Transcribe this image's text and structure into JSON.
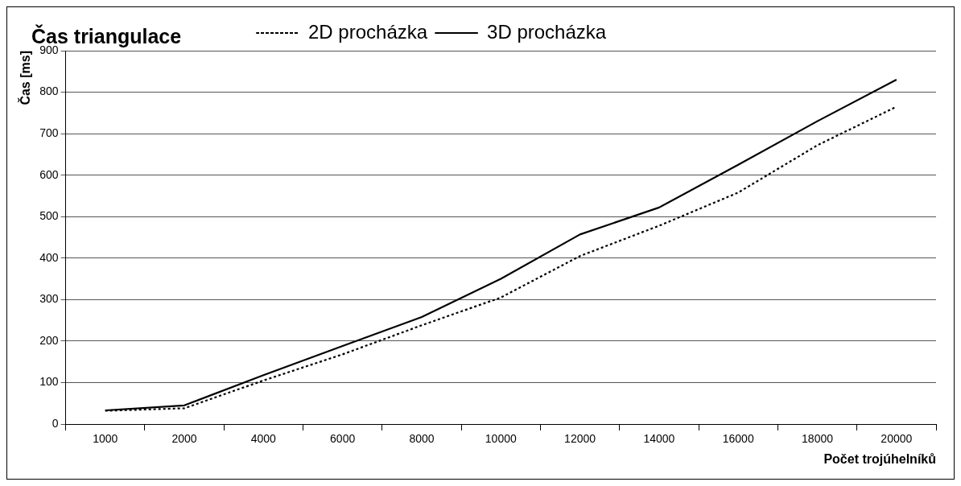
{
  "chart_data": {
    "type": "line",
    "title": "Čas triangulace",
    "xlabel": "Počet trojúhelníků",
    "ylabel": "Čas [ms]",
    "categories": [
      "1000",
      "2000",
      "4000",
      "6000",
      "8000",
      "10000",
      "12000",
      "14000",
      "16000",
      "18000",
      "20000"
    ],
    "series": [
      {
        "name": "2D procházka",
        "color": "#000000",
        "line_style": "dotted",
        "values": [
          32,
          38,
          105,
          168,
          238,
          305,
          405,
          478,
          558,
          672,
          765
        ]
      },
      {
        "name": "3D procházka",
        "color": "#000000",
        "line_style": "solid",
        "values": [
          33,
          45,
          118,
          188,
          258,
          350,
          457,
          522,
          625,
          730,
          830
        ]
      }
    ],
    "ylim": [
      0,
      900
    ],
    "yticks": [
      0,
      100,
      200,
      300,
      400,
      500,
      600,
      700,
      800,
      900
    ],
    "grid": "y",
    "legend": "top left",
    "marker": "none"
  }
}
